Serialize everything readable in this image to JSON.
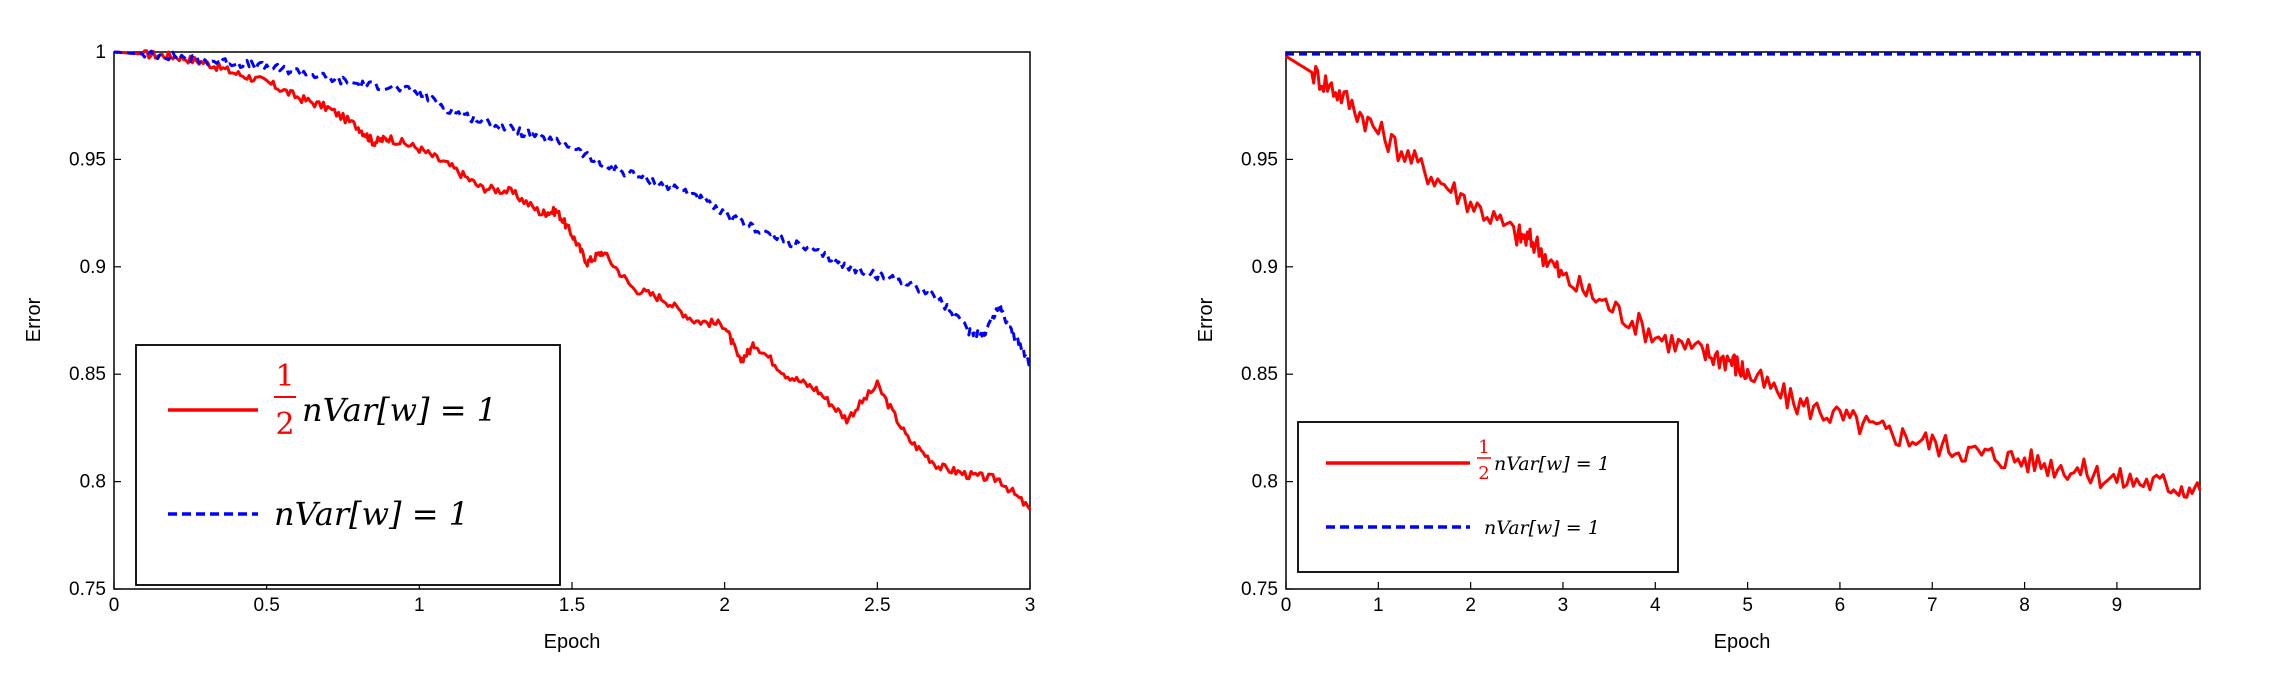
{
  "chart_data": [
    {
      "type": "line",
      "title": "",
      "xlabel": "Epoch",
      "ylabel": "Error",
      "xlim": [
        0,
        3
      ],
      "ylim": [
        0.75,
        1
      ],
      "xticks": [
        0,
        0.5,
        1,
        1.5,
        2,
        2.5,
        3
      ],
      "xtick_labels": [
        "0",
        "0.5",
        "1",
        "1.5",
        "2",
        "2.5",
        "3"
      ],
      "yticks": [
        0.75,
        0.8,
        0.85,
        0.9,
        0.95,
        1
      ],
      "ytick_labels": [
        "0.75",
        "0.8",
        "0.85",
        "0.9",
        "0.95",
        "1"
      ],
      "legend_position": "bottom-left",
      "series": [
        {
          "name": "½nVar[w] = 1",
          "color": "#ff0000",
          "style": "solid",
          "x": [
            0,
            0.1,
            0.2,
            0.3,
            0.4,
            0.5,
            0.6,
            0.7,
            0.8,
            0.85,
            0.9,
            1.0,
            1.1,
            1.2,
            1.3,
            1.4,
            1.45,
            1.5,
            1.55,
            1.6,
            1.7,
            1.8,
            1.9,
            2.0,
            2.05,
            2.1,
            2.2,
            2.3,
            2.4,
            2.5,
            2.6,
            2.7,
            2.8,
            2.9,
            3.0
          ],
          "y": [
            1.0,
            0.999,
            0.998,
            0.995,
            0.99,
            0.986,
            0.979,
            0.974,
            0.965,
            0.958,
            0.96,
            0.955,
            0.947,
            0.937,
            0.935,
            0.925,
            0.926,
            0.915,
            0.902,
            0.907,
            0.89,
            0.885,
            0.875,
            0.873,
            0.856,
            0.864,
            0.85,
            0.843,
            0.829,
            0.845,
            0.82,
            0.807,
            0.803,
            0.801,
            0.787
          ]
        },
        {
          "name": "nVar[w] = 1",
          "color": "#0000ff",
          "style": "dashed",
          "x": [
            0,
            0.1,
            0.2,
            0.3,
            0.4,
            0.5,
            0.6,
            0.7,
            0.8,
            0.9,
            1.0,
            1.1,
            1.2,
            1.3,
            1.4,
            1.5,
            1.6,
            1.7,
            1.8,
            1.9,
            2.0,
            2.1,
            2.2,
            2.3,
            2.4,
            2.5,
            2.6,
            2.7,
            2.8,
            2.85,
            2.9,
            2.95,
            3.0
          ],
          "y": [
            1.0,
            0.999,
            0.998,
            0.996,
            0.995,
            0.993,
            0.991,
            0.988,
            0.985,
            0.984,
            0.981,
            0.973,
            0.968,
            0.964,
            0.96,
            0.956,
            0.947,
            0.943,
            0.938,
            0.934,
            0.924,
            0.918,
            0.912,
            0.907,
            0.9,
            0.896,
            0.893,
            0.885,
            0.87,
            0.869,
            0.882,
            0.867,
            0.855
          ]
        }
      ]
    },
    {
      "type": "line",
      "title": "",
      "xlabel": "Epoch",
      "ylabel": "Error",
      "xlim": [
        0,
        9.9
      ],
      "ylim": [
        0.75,
        1
      ],
      "xticks": [
        0,
        1,
        2,
        3,
        4,
        5,
        6,
        7,
        8,
        9
      ],
      "xtick_labels": [
        "0",
        "1",
        "2",
        "3",
        "4",
        "5",
        "6",
        "7",
        "8",
        "9"
      ],
      "yticks": [
        0.75,
        0.8,
        0.85,
        0.9,
        0.95
      ],
      "ytick_labels": [
        "0.75",
        "0.8",
        "0.85",
        "0.9",
        "0.95"
      ],
      "legend_position": "bottom-left",
      "series": [
        {
          "name": "½nVar[w] = 1",
          "color": "#ff0000",
          "style": "solid",
          "x": [
            0,
            0.3,
            0.6,
            1.0,
            1.5,
            2.0,
            2.5,
            2.7,
            3.0,
            3.5,
            4.0,
            4.5,
            4.8,
            5.0,
            5.5,
            6.0,
            6.5,
            7.0,
            7.5,
            8.0,
            8.5,
            9.0,
            9.5,
            9.9
          ],
          "y": [
            0.998,
            0.99,
            0.98,
            0.963,
            0.945,
            0.93,
            0.915,
            0.911,
            0.895,
            0.882,
            0.868,
            0.86,
            0.857,
            0.85,
            0.837,
            0.83,
            0.823,
            0.818,
            0.813,
            0.81,
            0.806,
            0.801,
            0.799,
            0.796
          ]
        },
        {
          "name": "nVar[w] = 1",
          "color": "#0000ff",
          "style": "dashed",
          "x": [
            0,
            9.9
          ],
          "y": [
            0.999,
            0.999
          ]
        }
      ]
    }
  ],
  "legends": [
    [
      {
        "frac_num": "1",
        "frac_den": "2",
        "text": "nVar[w] = 1"
      },
      {
        "frac_num": "",
        "frac_den": "",
        "text": "nVar[w] = 1"
      }
    ],
    [
      {
        "frac_num": "1",
        "frac_den": "2",
        "text": "nVar[w] = 1"
      },
      {
        "frac_num": "",
        "frac_den": "",
        "text": "nVar[w] = 1"
      }
    ]
  ]
}
